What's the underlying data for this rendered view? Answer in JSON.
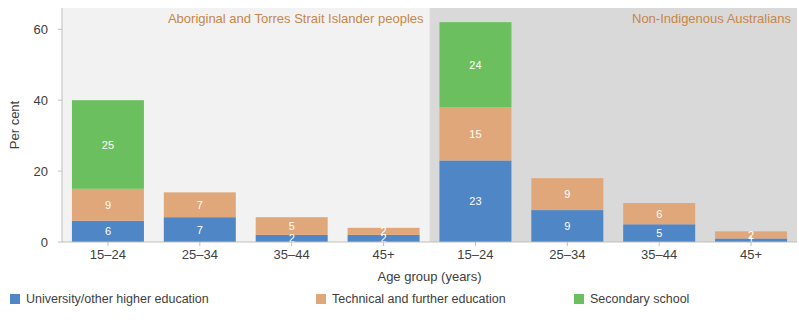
{
  "chart_data": {
    "type": "bar",
    "stacked": true,
    "data_labels": true,
    "grid": false,
    "legend": "bottom",
    "x_label": "Age group (years)",
    "y_label": "Per cent",
    "annotations": [
      {
        "text": "Aboriginal and Torres Strait Islander peoples"
      },
      {
        "text": "Non-Indigenous Australians"
      }
    ],
    "categories": [
      "15–24",
      "25–34",
      "35–44",
      "45+",
      "15–24",
      "25–34",
      "35–44",
      "45+"
    ],
    "series": [
      {
        "name": "University/other higher education",
        "color": "#4e86c6",
        "values": [
          6,
          7,
          2,
          2,
          23,
          9,
          5,
          1
        ]
      },
      {
        "name": "Technical and further education",
        "color": "#e0a87a",
        "values": [
          9,
          7,
          5,
          2,
          15,
          9,
          6,
          2
        ]
      },
      {
        "name": "Secondary school",
        "color": "#6cbf5f",
        "values": [
          25,
          null,
          null,
          null,
          24,
          null,
          null,
          null
        ]
      }
    ],
    "ylim": [
      0,
      66
    ],
    "yticks": [
      0,
      20,
      40,
      60
    ]
  }
}
